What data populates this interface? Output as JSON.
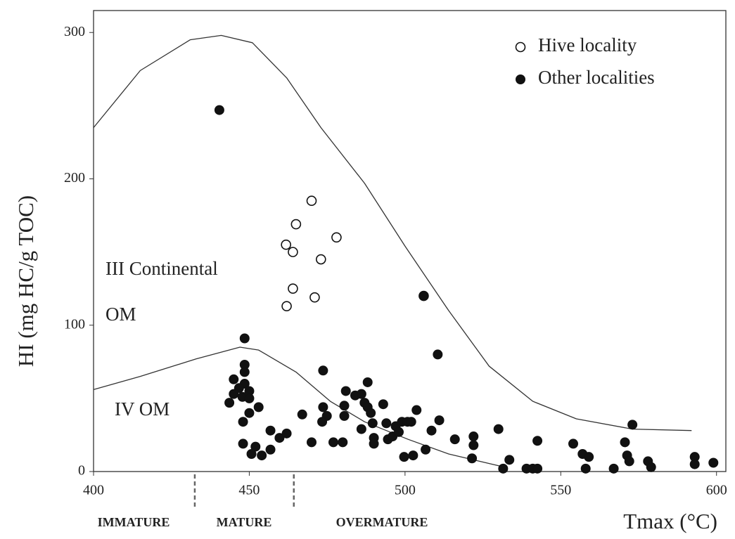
{
  "chart_data": {
    "type": "scatter",
    "x_label": "Tmax (°C)",
    "y_label": "HI (mg HC/g TOC)",
    "xlim": [
      400,
      603
    ],
    "ylim": [
      0,
      315
    ],
    "xticks": [
      400,
      450,
      500,
      550,
      600
    ],
    "yticks": [
      0,
      100,
      200,
      300
    ],
    "grid": false,
    "legend": "upper right",
    "annotations": [
      "III Continental",
      "OM",
      "IV OM"
    ],
    "zones": [
      "IMMATURE",
      "MATURE",
      "OVERMATURE"
    ],
    "zone_boundaries": [
      432.5,
      464.3
    ],
    "curves": [
      {
        "x": [
          400,
          415,
          431,
          441,
          451,
          462,
          473,
          487,
          500,
          514,
          527,
          541,
          555,
          573,
          592
        ],
        "y": [
          235,
          274,
          295,
          298,
          293,
          269,
          235,
          197,
          154,
          110,
          72,
          48,
          36,
          29,
          28
        ]
      },
      {
        "x": [
          400,
          415,
          433,
          447,
          453,
          465,
          476,
          487,
          501,
          514,
          528,
          532
        ],
        "y": [
          56,
          65,
          77,
          85,
          83,
          68,
          48,
          34,
          22,
          12,
          5,
          3
        ]
      }
    ],
    "series": [
      {
        "name": "Hive locality",
        "marker": "open",
        "color": "#111",
        "x": [
          461.8,
          464,
          465,
          470,
          478,
          473,
          464,
          462,
          471,
          506
        ],
        "y": [
          155,
          150,
          169,
          185,
          160,
          145,
          125,
          113,
          119,
          120
        ]
      },
      {
        "name": "Other localities",
        "marker": "filled",
        "color": "#111",
        "x": [
          440.4,
          448.5,
          506,
          510.5,
          473.7,
          448.5,
          448.5,
          445,
          448.5,
          446.7,
          450,
          445,
          447.8,
          450,
          443.6,
          450,
          453,
          448,
          456.8,
          459.7,
          462,
          467,
          448,
          452,
          450.7,
          454,
          456.8,
          470,
          473.7,
          474.9,
          473.4,
          477,
          480,
          480.5,
          480.5,
          481,
          484,
          486,
          488,
          487,
          488,
          489,
          486,
          489.6,
          490,
          490,
          493,
          494,
          494.5,
          496,
          497,
          498,
          499,
          500.8,
          502,
          499.7,
          502.6,
          503.7,
          506.6,
          508.5,
          511,
          516,
          522,
          522,
          521.5,
          530,
          531.5,
          533.5,
          539,
          541,
          542.5,
          542.5,
          554,
          557,
          559,
          558,
          567,
          570.6,
          571.3,
          572,
          573,
          578,
          579,
          593,
          593,
          599
        ],
        "y": [
          247,
          91,
          120,
          80,
          69,
          73,
          68,
          63,
          60,
          57,
          55,
          53,
          51,
          50,
          47,
          40,
          44,
          34,
          28,
          23,
          26,
          39,
          19,
          17,
          12,
          11,
          15,
          20,
          44,
          38,
          34,
          20,
          20,
          45,
          38,
          55,
          52,
          53,
          61,
          47,
          44,
          40,
          29,
          33,
          23,
          19,
          46,
          33,
          22,
          24,
          31,
          27,
          34,
          34,
          34,
          10,
          11,
          42,
          15,
          28,
          35,
          22,
          24,
          18,
          9,
          29,
          2,
          8,
          2,
          2,
          2,
          21,
          19,
          12,
          10,
          2,
          2,
          20,
          11,
          7,
          32,
          7,
          3,
          10,
          5,
          6
        ]
      }
    ]
  }
}
